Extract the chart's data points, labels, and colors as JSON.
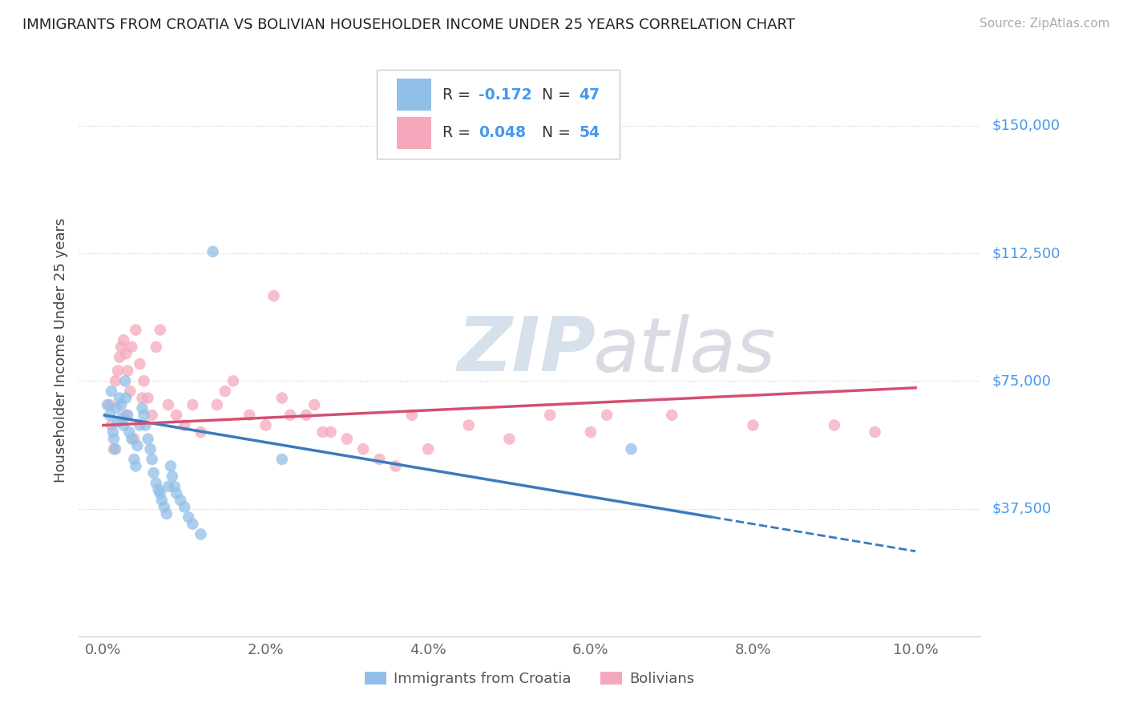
{
  "title": "IMMIGRANTS FROM CROATIA VS BOLIVIAN HOUSEHOLDER INCOME UNDER 25 YEARS CORRELATION CHART",
  "source": "Source: ZipAtlas.com",
  "ylabel": "Householder Income Under 25 years",
  "x_tick_labels": [
    "0.0%",
    "2.0%",
    "4.0%",
    "6.0%",
    "8.0%",
    "10.0%"
  ],
  "x_tick_values": [
    0.0,
    2.0,
    4.0,
    6.0,
    8.0,
    10.0
  ],
  "y_tick_labels": [
    "$37,500",
    "$75,000",
    "$112,500",
    "$150,000"
  ],
  "y_tick_values": [
    37500,
    75000,
    112500,
    150000
  ],
  "xlim": [
    -0.3,
    10.8
  ],
  "ylim": [
    0,
    168000
  ],
  "legend_labels": [
    "Immigrants from Croatia",
    "Bolivians"
  ],
  "legend_r_blue": "-0.172",
  "legend_n_blue": "47",
  "legend_r_pink": "0.048",
  "legend_n_pink": "54",
  "dot_color_blue": "#92bfe8",
  "dot_color_pink": "#f5a8bb",
  "line_color_blue": "#3a7bbf",
  "line_color_pink": "#d45070",
  "watermark_zip": "ZIP",
  "watermark_atlas": "atlas",
  "watermark_color_zip": "#c5d5e5",
  "watermark_color_atlas": "#d0c8d8",
  "blue_line_x0": 0.0,
  "blue_line_y0": 65000,
  "blue_line_x1": 10.0,
  "blue_line_y1": 25000,
  "blue_solid_end": 7.5,
  "pink_line_x0": 0.0,
  "pink_line_y0": 62000,
  "pink_line_x1": 10.0,
  "pink_line_y1": 73000,
  "blue_points_x": [
    0.05,
    0.08,
    0.1,
    0.12,
    0.13,
    0.15,
    0.16,
    0.18,
    0.2,
    0.22,
    0.23,
    0.25,
    0.27,
    0.28,
    0.3,
    0.32,
    0.35,
    0.38,
    0.4,
    0.42,
    0.45,
    0.48,
    0.5,
    0.52,
    0.55,
    0.58,
    0.6,
    0.62,
    0.65,
    0.68,
    0.7,
    0.72,
    0.75,
    0.78,
    0.8,
    0.83,
    0.85,
    0.88,
    0.9,
    0.95,
    1.0,
    1.05,
    1.1,
    1.2,
    1.35,
    6.5,
    2.2
  ],
  "blue_points_y": [
    68000,
    65000,
    72000,
    60000,
    58000,
    55000,
    67000,
    63000,
    70000,
    68000,
    64000,
    62000,
    75000,
    70000,
    65000,
    60000,
    58000,
    52000,
    50000,
    56000,
    62000,
    67000,
    65000,
    62000,
    58000,
    55000,
    52000,
    48000,
    45000,
    43000,
    42000,
    40000,
    38000,
    36000,
    44000,
    50000,
    47000,
    44000,
    42000,
    40000,
    38000,
    35000,
    33000,
    30000,
    113000,
    55000,
    52000
  ],
  "pink_points_x": [
    0.08,
    0.1,
    0.13,
    0.15,
    0.18,
    0.2,
    0.22,
    0.25,
    0.28,
    0.3,
    0.33,
    0.35,
    0.4,
    0.45,
    0.5,
    0.55,
    0.6,
    0.65,
    0.7,
    0.8,
    0.9,
    1.0,
    1.2,
    1.4,
    1.5,
    1.6,
    1.8,
    2.0,
    2.2,
    2.3,
    2.5,
    2.6,
    2.8,
    3.0,
    3.2,
    3.4,
    3.6,
    3.8,
    4.0,
    4.5,
    5.0,
    5.5,
    6.0,
    6.2,
    7.0,
    8.0,
    9.0,
    9.5,
    2.1,
    2.7,
    1.1,
    0.48,
    0.28,
    0.38
  ],
  "pink_points_y": [
    68000,
    62000,
    55000,
    75000,
    78000,
    82000,
    85000,
    87000,
    83000,
    78000,
    72000,
    85000,
    90000,
    80000,
    75000,
    70000,
    65000,
    85000,
    90000,
    68000,
    65000,
    62000,
    60000,
    68000,
    72000,
    75000,
    65000,
    62000,
    70000,
    65000,
    65000,
    68000,
    60000,
    58000,
    55000,
    52000,
    50000,
    65000,
    55000,
    62000,
    58000,
    65000,
    60000,
    65000,
    65000,
    62000,
    62000,
    60000,
    100000,
    60000,
    68000,
    70000,
    65000,
    58000
  ]
}
